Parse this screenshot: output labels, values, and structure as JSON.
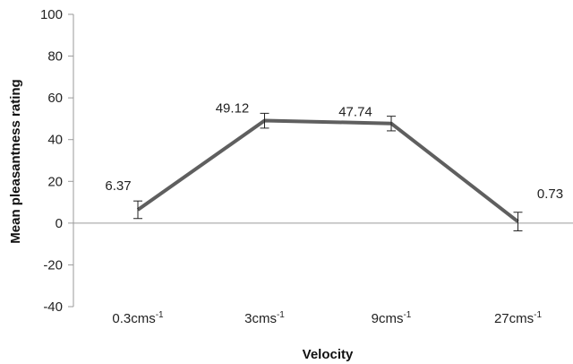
{
  "chart_data": {
    "type": "line",
    "title": "",
    "xlabel": "Velocity",
    "ylabel": "Mean pleasantness rating",
    "ylim": [
      -40,
      100
    ],
    "yticks": [
      -40,
      -20,
      0,
      20,
      40,
      60,
      80,
      100
    ],
    "categories": [
      {
        "base": "0.3cms",
        "sup": "-1"
      },
      {
        "base": "3cms",
        "sup": "-1"
      },
      {
        "base": "9cms",
        "sup": "-1"
      },
      {
        "base": "27cms",
        "sup": "-1"
      }
    ],
    "series": [
      {
        "values": [
          6.37,
          49.12,
          47.74,
          0.73
        ],
        "error_low": [
          2.2,
          45.5,
          44.2,
          -3.7
        ],
        "error_high": [
          10.6,
          52.6,
          51.2,
          5.2
        ],
        "color": "#5f5f5f"
      }
    ],
    "data_labels": [
      "6.37",
      "49.12",
      "47.74",
      "0.73"
    ],
    "grid": false,
    "legend": "none"
  }
}
